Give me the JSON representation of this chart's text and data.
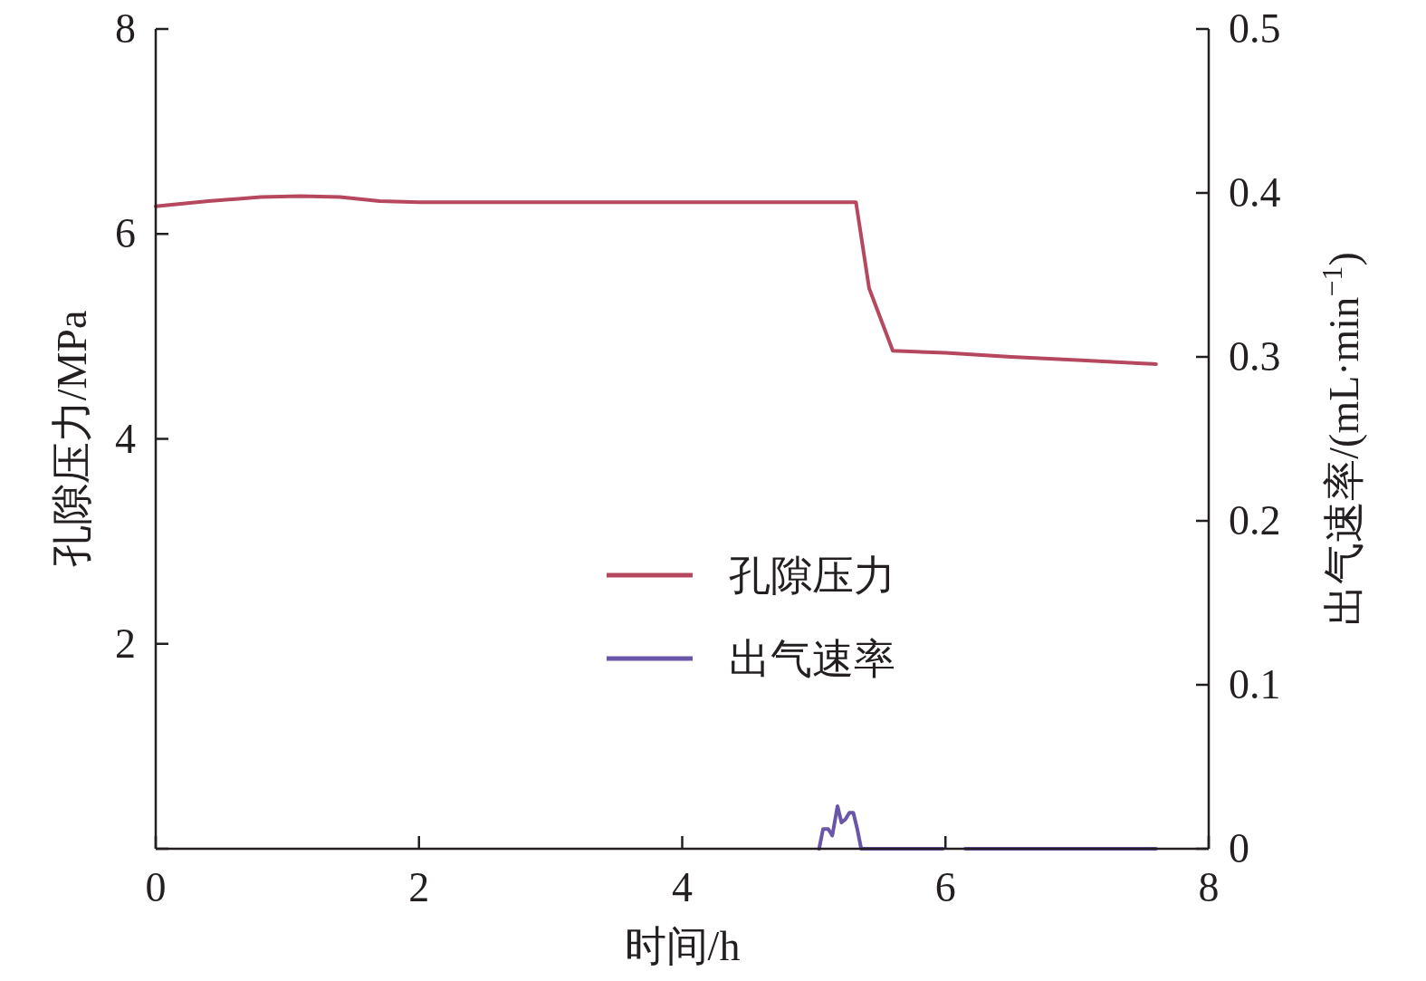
{
  "chart_data": {
    "type": "line",
    "xlabel": "时间/h",
    "ylabel": "孔隙压力/MPa",
    "y2label": "出气速率/(mL·min$^{−1}$)",
    "xlim": [
      0,
      8
    ],
    "xticks": [
      0,
      2,
      4,
      6,
      8
    ],
    "ylim": [
      0,
      8
    ],
    "yticks": [
      {
        "value": 0,
        "label": null
      },
      2,
      4,
      6,
      8
    ],
    "y2lim": [
      0,
      0.5
    ],
    "y2ticks": [
      0,
      0.1,
      0.2,
      0.3,
      0.4,
      0.5
    ],
    "grid": false,
    "legend": "center",
    "marker": "none",
    "line_style": "solid",
    "series": [
      {
        "name": "孔隙压力",
        "color": "#b5485e",
        "x": [
          0,
          0.4,
          0.8,
          1.1,
          1.4,
          1.7,
          2,
          3,
          4,
          5,
          5.32,
          5.42,
          5.6,
          6,
          6.5,
          7,
          7.6
        ],
        "values": [
          6.27,
          6.32,
          6.36,
          6.37,
          6.36,
          6.32,
          6.31,
          6.31,
          6.31,
          6.31,
          6.31,
          5.47,
          4.86,
          4.84,
          4.8,
          4.77,
          4.73
        ]
      },
      {
        "name": "出气速率",
        "color": "#6a56a8",
        "axis": "y2",
        "x": [
          5.04,
          5.07,
          5.11,
          5.14,
          5.18,
          5.21,
          5.24,
          5.27,
          5.3,
          5.33,
          5.36,
          5.5,
          5.98,
          null,
          6.15,
          7,
          7.6
        ],
        "values": [
          0,
          0.012,
          0.012,
          0.008,
          0.026,
          0.016,
          0.018,
          0.022,
          0.022,
          0.012,
          0,
          0,
          0,
          null,
          0,
          0,
          0
        ]
      }
    ]
  }
}
